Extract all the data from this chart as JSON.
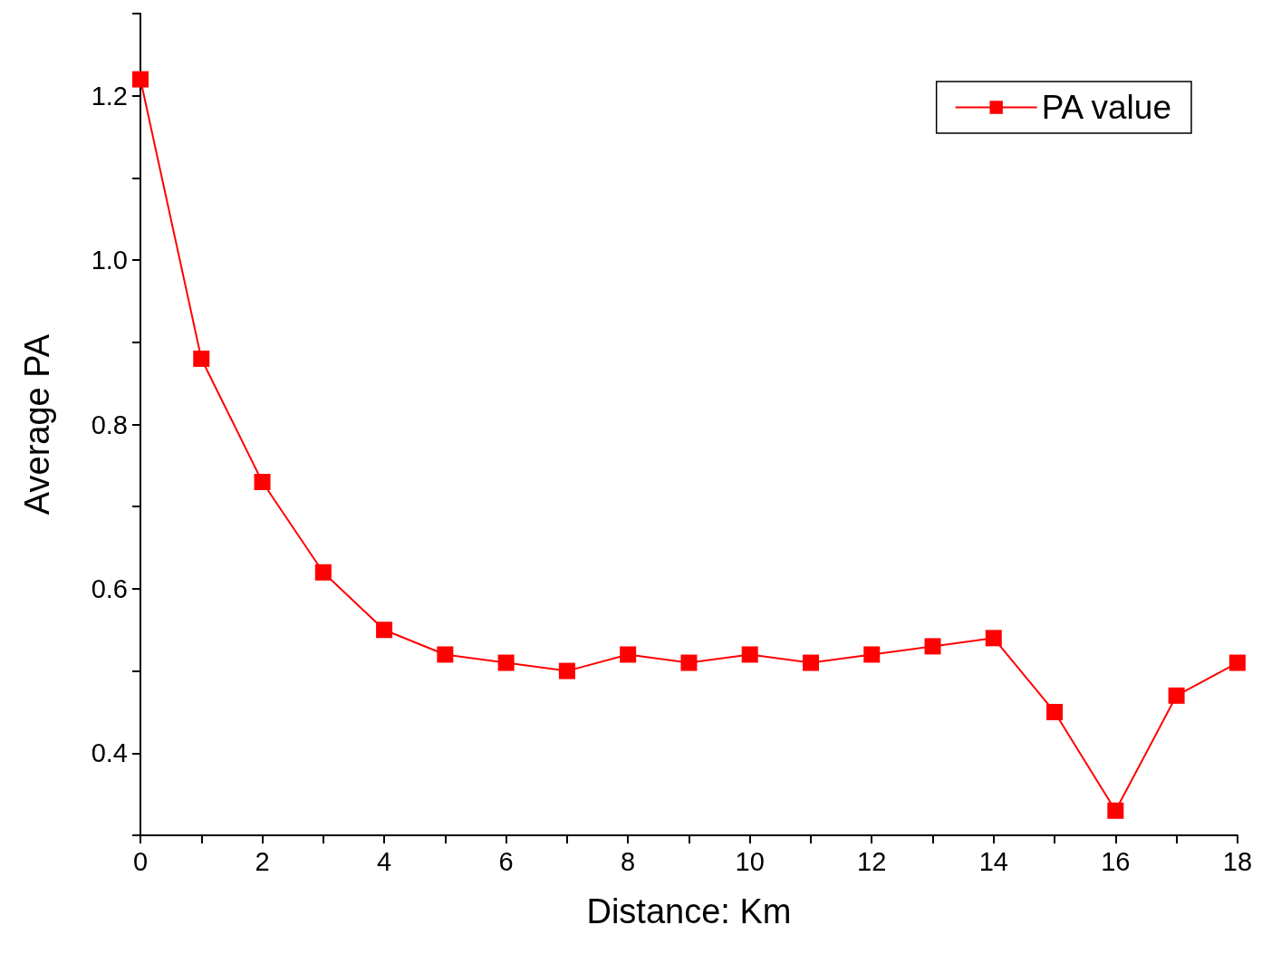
{
  "chart_data": {
    "type": "line",
    "xlabel": "Distance: Km",
    "ylabel": "Average PA",
    "x": [
      0,
      1,
      2,
      3,
      4,
      5,
      6,
      7,
      8,
      9,
      10,
      11,
      12,
      13,
      14,
      15,
      16,
      17,
      18
    ],
    "series": [
      {
        "name": "PA value",
        "color": "#ff0000",
        "values": [
          1.22,
          0.88,
          0.73,
          0.62,
          0.55,
          0.52,
          0.51,
          0.5,
          0.52,
          0.51,
          0.52,
          0.51,
          0.52,
          0.53,
          0.54,
          0.45,
          0.33,
          0.47,
          0.51
        ]
      }
    ],
    "xlim": [
      0,
      18
    ],
    "xticks": [
      0,
      {
        "value": 1,
        "label": null
      },
      2,
      {
        "value": 3,
        "label": null
      },
      4,
      {
        "value": 5,
        "label": null
      },
      6,
      {
        "value": 7,
        "label": null
      },
      8,
      {
        "value": 9,
        "label": null
      },
      10,
      {
        "value": 11,
        "label": null
      },
      12,
      {
        "value": 13,
        "label": null
      },
      14,
      {
        "value": 15,
        "label": null
      },
      16,
      {
        "value": 17,
        "label": null
      },
      18
    ],
    "ylim": [
      0.3,
      1.3
    ],
    "yticks": [
      {
        "value": 0.3,
        "label": null
      },
      {
        "value": 0.4,
        "label": "0.4"
      },
      {
        "value": 0.5,
        "label": null
      },
      {
        "value": 0.6,
        "label": "0.6"
      },
      {
        "value": 0.7,
        "label": null
      },
      {
        "value": 0.8,
        "label": "0.8"
      },
      {
        "value": 0.9,
        "label": null
      },
      {
        "value": 1.0,
        "label": "1.0"
      },
      {
        "value": 1.1,
        "label": null
      },
      {
        "value": 1.2,
        "label": "1.2"
      },
      {
        "value": 1.3,
        "label": null
      }
    ],
    "legend": "top right",
    "marker": "square",
    "line_style": "solid",
    "grid": false
  }
}
